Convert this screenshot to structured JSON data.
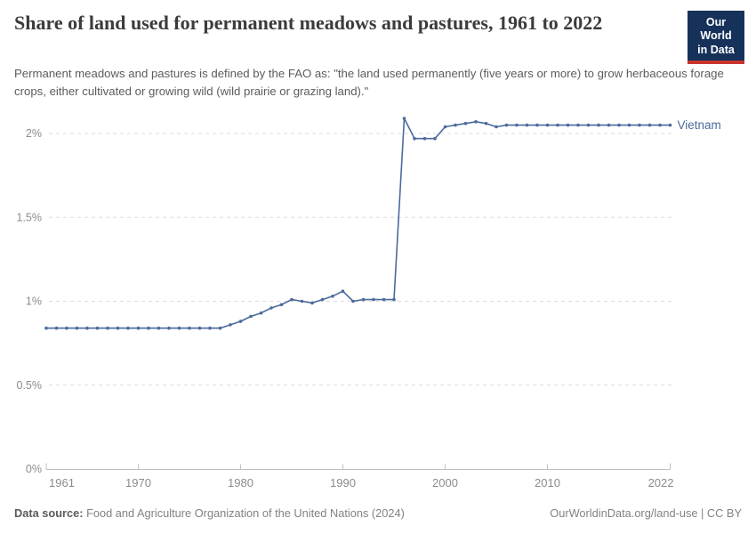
{
  "header": {
    "title": "Share of land used for permanent meadows and pastures, 1961 to 2022",
    "subtitle": "Permanent meadows and pastures is defined by the FAO as: \"the land used permanently (five years or more) to grow herbaceous forage crops, either cultivated or growing wild (wild prairie or grazing land).\"",
    "logo_line1": "Our World",
    "logo_line2": "in Data"
  },
  "chart_data": {
    "type": "line",
    "title": "Share of land used for permanent meadows and pastures, 1961 to 2022",
    "xlabel": "",
    "ylabel": "",
    "xlim": [
      1961,
      2022
    ],
    "ylim": [
      0,
      2.15
    ],
    "grid": "horizontal-dashed",
    "legend_position": "end-of-line-label",
    "xticks": [
      1961,
      1970,
      1980,
      1990,
      2000,
      2010,
      2022
    ],
    "yticks": [
      0,
      0.5,
      1,
      1.5,
      2
    ],
    "ytick_labels": [
      "0%",
      "0.5%",
      "1%",
      "1.5%",
      "2%"
    ],
    "series": [
      {
        "name": "Vietnam",
        "color": "#4c6a9c",
        "x": [
          1961,
          1962,
          1963,
          1964,
          1965,
          1966,
          1967,
          1968,
          1969,
          1970,
          1971,
          1972,
          1973,
          1974,
          1975,
          1976,
          1977,
          1978,
          1979,
          1980,
          1981,
          1982,
          1983,
          1984,
          1985,
          1986,
          1987,
          1988,
          1989,
          1990,
          1991,
          1992,
          1993,
          1994,
          1995,
          1996,
          1997,
          1998,
          1999,
          2000,
          2001,
          2002,
          2003,
          2004,
          2005,
          2006,
          2007,
          2008,
          2009,
          2010,
          2011,
          2012,
          2013,
          2014,
          2015,
          2016,
          2017,
          2018,
          2019,
          2020,
          2021,
          2022
        ],
        "values": [
          0.84,
          0.84,
          0.84,
          0.84,
          0.84,
          0.84,
          0.84,
          0.84,
          0.84,
          0.84,
          0.84,
          0.84,
          0.84,
          0.84,
          0.84,
          0.84,
          0.84,
          0.84,
          0.86,
          0.88,
          0.91,
          0.93,
          0.96,
          0.98,
          1.01,
          1.0,
          0.99,
          1.01,
          1.03,
          1.06,
          1.0,
          1.01,
          1.01,
          1.01,
          1.01,
          2.09,
          1.97,
          1.97,
          1.97,
          2.04,
          2.05,
          2.06,
          2.07,
          2.06,
          2.04,
          2.05,
          2.05,
          2.05,
          2.05,
          2.05,
          2.05,
          2.05,
          2.05,
          2.05,
          2.05,
          2.05,
          2.05,
          2.05,
          2.05,
          2.05,
          2.05,
          2.05
        ]
      }
    ]
  },
  "footer": {
    "source_label": "Data source:",
    "source_text": " Food and Agriculture Organization of the United Nations (2024)",
    "rights": "OurWorldinData.org/land-use | CC BY"
  },
  "colors": {
    "line": "#4c6a9c",
    "grid": "#dcdcdc",
    "axis": "#c0c0c0",
    "tick_label": "#8b8b8b",
    "title": "#3b3b3b",
    "subtitle": "#5c5c5c",
    "logo_bg": "#16325a",
    "logo_red": "#c9352e"
  }
}
